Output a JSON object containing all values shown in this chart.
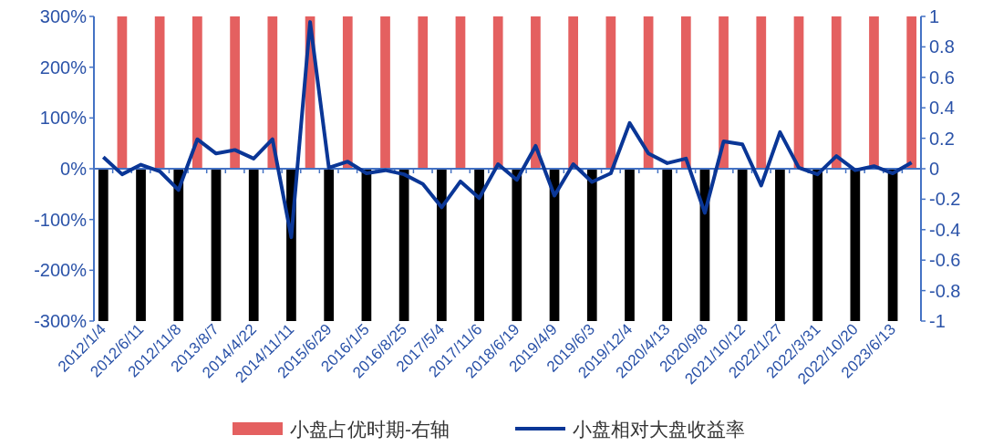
{
  "chart_data": {
    "type": "bar",
    "categories": [
      "2012/1/4",
      null,
      "2012/6/11",
      null,
      "2012/11/8",
      null,
      "2013/8/7",
      null,
      "2014/4/22",
      null,
      "2014/11/11",
      null,
      "2015/6/29",
      null,
      "2016/1/5",
      null,
      "2016/8/25",
      null,
      "2017/5/4",
      null,
      "2017/11/6",
      null,
      "2018/6/19",
      null,
      "2019/4/9",
      null,
      "2019/6/3",
      null,
      "2019/12/4",
      null,
      "2020/4/13",
      null,
      "2020/9/8",
      null,
      "2021/10/12",
      null,
      "2022/1/27",
      null,
      "2022/3/31",
      null,
      "2022/10/20",
      null,
      "2023/6/13",
      null
    ],
    "series": [
      {
        "name": "小盘占优时期-右轴",
        "axis": "y2",
        "color": "#e46060",
        "values": [
          null,
          1,
          null,
          1,
          null,
          1,
          null,
          1,
          null,
          1,
          null,
          1,
          null,
          1,
          null,
          1,
          null,
          1,
          null,
          1,
          null,
          1,
          null,
          1,
          null,
          1,
          null,
          1,
          null,
          1,
          null,
          1,
          null,
          1,
          null,
          1,
          null,
          1,
          null,
          1,
          null,
          1,
          null,
          1
        ]
      },
      {
        "axis": "y2",
        "color": "#000000",
        "values": [
          -1,
          null,
          -1,
          null,
          -1,
          null,
          -1,
          null,
          -1,
          null,
          -1,
          null,
          -1,
          null,
          -1,
          null,
          -1,
          null,
          -1,
          null,
          -1,
          null,
          -1,
          null,
          -1,
          null,
          -1,
          null,
          -1,
          null,
          -1,
          null,
          -1,
          null,
          -1,
          null,
          -1,
          null,
          -1,
          null,
          -1,
          null,
          -1,
          null
        ]
      },
      {
        "name": "小盘相对大盘收益率",
        "type": "line",
        "axis": "y",
        "color": "#0a3696",
        "values": [
          23,
          -11,
          8,
          -5,
          -42,
          58,
          30,
          37,
          20,
          58,
          -135,
          289,
          2,
          14,
          -9,
          -3,
          -11,
          -30,
          -76,
          -25,
          -58,
          9,
          -22,
          45,
          -53,
          9,
          -26,
          -9,
          90,
          30,
          11,
          20,
          -87,
          54,
          48,
          -33,
          72,
          2,
          -11,
          25,
          -3,
          5,
          -9,
          12
        ]
      }
    ],
    "ylim": [
      -300,
      300
    ],
    "yticks": [
      {
        "value": -300,
        "label": "-300%"
      },
      {
        "value": -200,
        "label": "-200%"
      },
      {
        "value": -100,
        "label": "-100%"
      },
      {
        "value": 0,
        "label": "0%"
      },
      {
        "value": 100,
        "label": "100%"
      },
      {
        "value": 200,
        "label": "200%"
      },
      {
        "value": 300,
        "label": "300%"
      }
    ],
    "y2lim": [
      -1,
      1
    ],
    "y2ticks": [
      -1,
      -0.8,
      -0.6,
      -0.4,
      -0.2,
      0,
      0.2,
      0.4,
      0.6,
      0.8,
      1
    ],
    "ref_lines": [
      {
        "axis": "y",
        "value": 0,
        "color": "#4472c4"
      }
    ],
    "legend": "bottom",
    "grid": false,
    "marker": "none",
    "line_style": "solid"
  }
}
